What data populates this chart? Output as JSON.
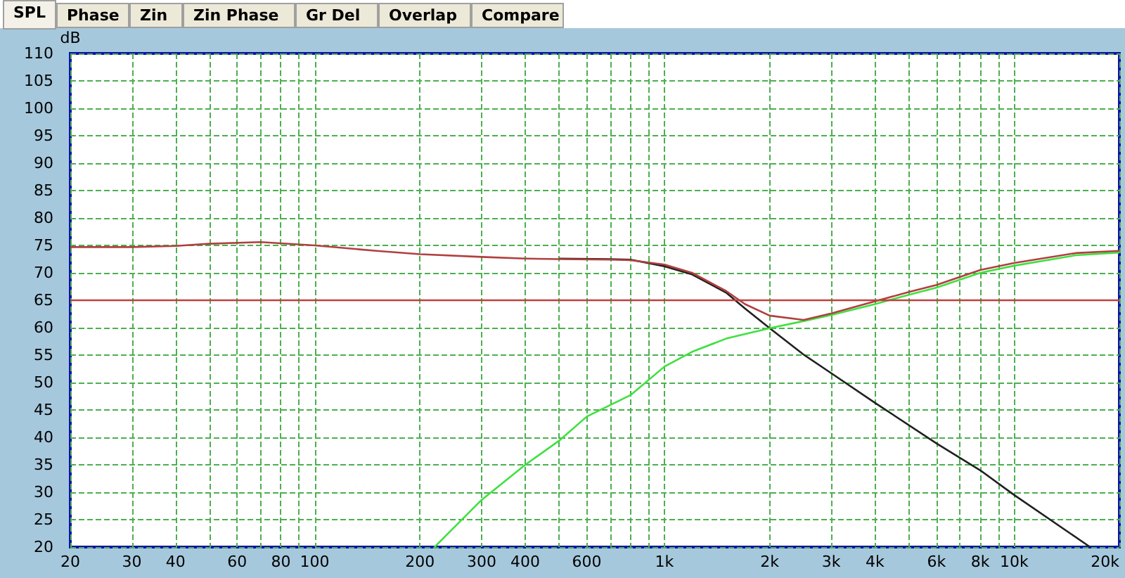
{
  "chart_data": {
    "type": "line",
    "ylabel": "dB",
    "annotations": [
      "SPL",
      "Phase",
      "Zin",
      "Zin Phase",
      "Gr Del",
      "Overlap",
      "Compare"
    ],
    "xlim": [
      20,
      20000
    ],
    "ylim": [
      20,
      110
    ],
    "log": "x",
    "grid": true,
    "xticks": [
      20,
      30,
      40,
      {
        "value": 50,
        "label": null
      },
      60,
      {
        "value": 70,
        "label": null
      },
      80,
      {
        "value": 90,
        "label": null
      },
      100,
      200,
      300,
      400,
      {
        "value": 500,
        "label": null
      },
      600,
      {
        "value": 700,
        "label": null
      },
      {
        "value": 800,
        "label": null
      },
      {
        "value": 900,
        "label": null
      },
      {
        "value": 1000,
        "label": "1k"
      },
      {
        "value": 2000,
        "label": "2k"
      },
      {
        "value": 3000,
        "label": "3k"
      },
      {
        "value": 4000,
        "label": "4k"
      },
      {
        "value": 5000,
        "label": null
      },
      {
        "value": 6000,
        "label": "6k"
      },
      {
        "value": 7000,
        "label": null
      },
      {
        "value": 8000,
        "label": "8k"
      },
      {
        "value": 9000,
        "label": null
      },
      {
        "value": 10000,
        "label": "10k"
      },
      {
        "value": 20000,
        "label": "20k"
      }
    ],
    "yticks": [
      20,
      25,
      30,
      35,
      40,
      45,
      50,
      55,
      60,
      65,
      70,
      75,
      80,
      85,
      90,
      95,
      100,
      105,
      110
    ],
    "ref_lines": [
      {
        "axis": "y",
        "value": 65,
        "label": null,
        "color": "#c04040"
      }
    ],
    "series": [
      {
        "color": "#202020",
        "x": [
          500,
          700,
          800,
          1000,
          1200,
          1500,
          1700,
          2000,
          2500,
          3000,
          4000,
          6000,
          8000,
          10000,
          16500
        ],
        "values": [
          72.6,
          72.5,
          72.4,
          71.2,
          69.7,
          66.4,
          63.5,
          59.9,
          55.1,
          51.7,
          46.3,
          38.9,
          34.0,
          29.5,
          20
        ]
      },
      {
        "color": "#40e040",
        "x": [
          220,
          300,
          400,
          500,
          600,
          800,
          1000,
          1200,
          1500,
          2000,
          2500,
          3000,
          4000,
          5000,
          6000,
          8000,
          10000,
          15000,
          20000
        ],
        "values": [
          20,
          28.6,
          35,
          39.4,
          43.8,
          47.7,
          52.9,
          55.6,
          58,
          59.9,
          61.2,
          62.3,
          64.3,
          66,
          67.3,
          70,
          71.3,
          73.2,
          73.7
        ]
      },
      {
        "color": "#b04040",
        "x": [
          20,
          30,
          40,
          50,
          70,
          100,
          150,
          200,
          300,
          400,
          500,
          700,
          800,
          1000,
          1200,
          1500,
          1700,
          2000,
          2500,
          3000,
          4000,
          5000,
          6000,
          8000,
          10000,
          15000,
          20000
        ],
        "values": [
          74.7,
          74.7,
          74.9,
          75.3,
          75.6,
          75.0,
          74.0,
          73.4,
          72.9,
          72.6,
          72.5,
          72.4,
          72.3,
          71.5,
          70,
          66.7,
          64.3,
          62.2,
          61.4,
          62.6,
          64.8,
          66.5,
          67.8,
          70.5,
          71.8,
          73.6,
          74
        ]
      }
    ]
  }
}
